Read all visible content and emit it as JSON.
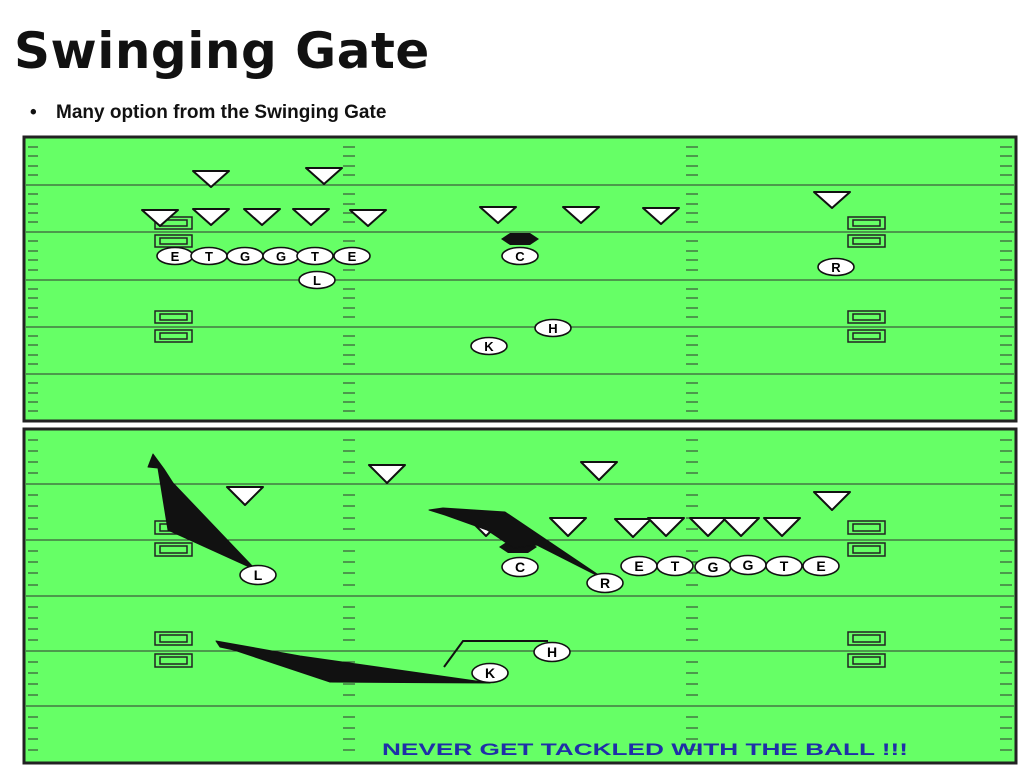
{
  "slide": {
    "title": "Swinging Gate",
    "bullet": "Many option from the Swinging Gate",
    "bullet_marker": "•"
  },
  "colors": {
    "field": "#66ff66",
    "line": "#333333",
    "player_fill": "#ffffff",
    "caption": "#1f2fa8"
  },
  "diagram_top": {
    "offense": [
      {
        "label": "E"
      },
      {
        "label": "T"
      },
      {
        "label": "G"
      },
      {
        "label": "G"
      },
      {
        "label": "T"
      },
      {
        "label": "E"
      },
      {
        "label": "L"
      },
      {
        "label": "C"
      },
      {
        "label": "R"
      },
      {
        "label": "H"
      },
      {
        "label": "K"
      }
    ]
  },
  "diagram_bottom": {
    "offense": [
      {
        "label": "L"
      },
      {
        "label": "C"
      },
      {
        "label": "R"
      },
      {
        "label": "E"
      },
      {
        "label": "T"
      },
      {
        "label": "G"
      },
      {
        "label": "G"
      },
      {
        "label": "T"
      },
      {
        "label": "E"
      },
      {
        "label": "H"
      },
      {
        "label": "K"
      }
    ],
    "caption": "NEVER GET TACKLED WITH THE BALL !!!"
  }
}
